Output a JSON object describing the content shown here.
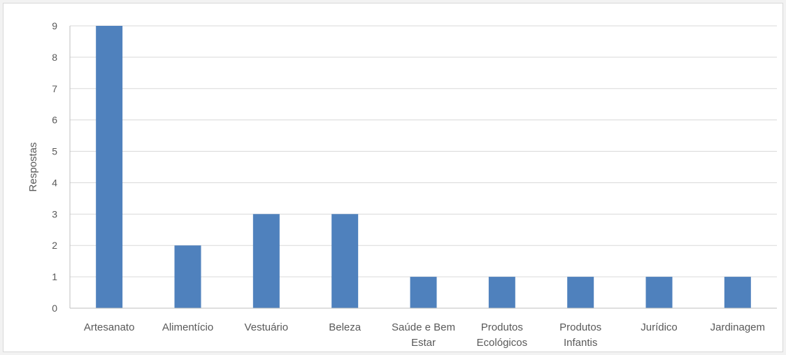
{
  "chart_data": {
    "type": "bar",
    "categories": [
      [
        "Artesanato"
      ],
      [
        "Alimentício"
      ],
      [
        "Vestuário"
      ],
      [
        "Beleza"
      ],
      [
        "Saúde e Bem",
        "Estar"
      ],
      [
        "Produtos",
        "Ecológicos"
      ],
      [
        "Produtos",
        "Infantis"
      ],
      [
        "Jurídico"
      ],
      [
        "Jardinagem"
      ]
    ],
    "values": [
      9,
      2,
      3,
      3,
      1,
      1,
      1,
      1,
      1
    ],
    "title": "",
    "xlabel": "",
    "ylabel": "Respostas",
    "ylim": [
      0,
      9
    ],
    "yticks": [
      0,
      1,
      2,
      3,
      4,
      5,
      6,
      7,
      8,
      9
    ],
    "grid": true,
    "legend": "none",
    "colors": {
      "bar": "#4f81bd",
      "grid": "#d9d9d9",
      "text": "#595959",
      "axis": "#bfbfbf"
    }
  }
}
